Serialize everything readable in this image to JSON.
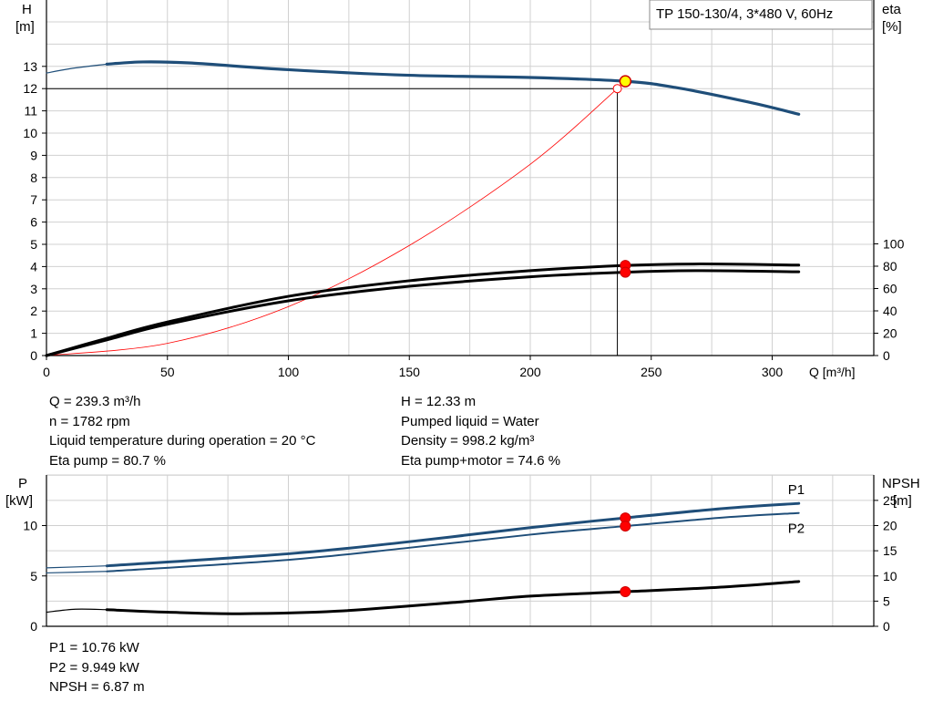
{
  "chart_data": [
    {
      "type": "line",
      "title": "TP 150-130/4, 3*480 V, 60Hz",
      "left_axis": {
        "label_top": "H",
        "label_unit": "[m]",
        "ylim": [
          0,
          14
        ],
        "ticks": [
          "0",
          "1",
          "2",
          "3",
          "4",
          "5",
          "6",
          "7",
          "8",
          "9",
          "10",
          "11",
          "12",
          "13"
        ]
      },
      "right_axis": {
        "label_top": "eta",
        "label_unit": "[%]",
        "ylim": [
          0,
          100
        ],
        "ticks": [
          "0",
          "20",
          "40",
          "60",
          "80",
          "100"
        ]
      },
      "x_axis": {
        "label": "Q [m³/h]",
        "xlim": [
          0,
          340
        ],
        "ticks": [
          "0",
          "50",
          "100",
          "150",
          "200",
          "250",
          "300"
        ]
      },
      "grid": true,
      "series": [
        {
          "role": "head",
          "axis": "left",
          "color": "#1f4e79",
          "x": [
            25,
            40,
            60,
            100,
            150,
            200,
            239.3,
            260,
            290,
            311
          ],
          "y": [
            13.1,
            13.2,
            13.15,
            12.85,
            12.6,
            12.5,
            12.33,
            12.05,
            11.4,
            10.85
          ]
        },
        {
          "role": "head-extension",
          "axis": "left",
          "color": "#1f4e79",
          "x": [
            0,
            10,
            25
          ],
          "y": [
            12.7,
            12.9,
            13.1
          ]
        },
        {
          "role": "system-curve",
          "axis": "left",
          "color": "#ff0000",
          "x": [
            0,
            50,
            100,
            150,
            200,
            236
          ],
          "y": [
            0,
            0.55,
            2.2,
            4.95,
            8.6,
            12.0
          ]
        },
        {
          "role": "eta-pump",
          "axis": "right",
          "color": "#000000",
          "x": [
            0,
            25,
            50,
            100,
            150,
            200,
            239.3,
            270,
            311
          ],
          "y": [
            0,
            15.5,
            30,
            53,
            67,
            76,
            80.7,
            82,
            81
          ]
        },
        {
          "role": "eta-pump-motor",
          "axis": "right",
          "color": "#000000",
          "x": [
            0,
            25,
            50,
            100,
            150,
            200,
            239.3,
            270,
            311
          ],
          "y": [
            0,
            14,
            28,
            49,
            62,
            70.5,
            74.6,
            76,
            75
          ]
        }
      ],
      "operating_point": {
        "Q": 239.3,
        "H": 12.33,
        "eta_pump": 80.7,
        "eta_total": 74.6
      },
      "drop_point": {
        "Q": 236,
        "H": 12.0
      }
    },
    {
      "type": "line",
      "left_axis": {
        "label_top": "P",
        "label_unit": "[kW]",
        "ylim": [
          0,
          14
        ],
        "ticks": [
          "0",
          "5",
          "10"
        ]
      },
      "right_axis": {
        "label_top": "NPSH",
        "label_unit": "[m]",
        "ylim": [
          0,
          28
        ],
        "ticks": [
          "0",
          "5",
          "10",
          "15",
          "20",
          "25"
        ]
      },
      "x_axis": {
        "xlim": [
          0,
          340
        ]
      },
      "grid": true,
      "series": [
        {
          "name": "P1",
          "axis": "left",
          "color": "#1f4e79",
          "x": [
            25,
            100,
            150,
            200,
            239.3,
            280,
            311
          ],
          "y": [
            6.0,
            7.2,
            8.4,
            9.8,
            10.76,
            11.7,
            12.2
          ]
        },
        {
          "role": "P1-extension",
          "axis": "left",
          "color": "#1f4e79",
          "x": [
            0,
            25
          ],
          "y": [
            5.8,
            6.0
          ]
        },
        {
          "name": "P2",
          "axis": "left",
          "color": "#1f4e79",
          "x": [
            25,
            100,
            150,
            200,
            239.3,
            280,
            311
          ],
          "y": [
            5.45,
            6.6,
            7.8,
            9.1,
            9.949,
            10.8,
            11.25
          ]
        },
        {
          "role": "P2-extension",
          "axis": "left",
          "color": "#1f4e79",
          "x": [
            0,
            25
          ],
          "y": [
            5.3,
            5.45
          ]
        },
        {
          "role": "npsh",
          "axis": "right",
          "color": "#000000",
          "x": [
            25,
            50,
            80,
            120,
            170,
            200,
            239.3,
            280,
            311
          ],
          "y": [
            3.3,
            2.8,
            2.5,
            3.0,
            4.8,
            6.0,
            6.87,
            7.8,
            8.9
          ]
        },
        {
          "role": "npsh-extension",
          "axis": "right",
          "color": "#000000",
          "x": [
            0,
            12,
            25
          ],
          "y": [
            2.8,
            3.4,
            3.3
          ]
        }
      ],
      "operating_point": {
        "Q": 239.3,
        "P1": 10.76,
        "P2": 9.949,
        "NPSH": 6.87
      }
    }
  ],
  "info_top_left": [
    "Q = 239.3 m³/h",
    "n = 1782 rpm",
    "Liquid temperature during operation = 20 °C",
    "Eta pump = 80.7 %"
  ],
  "info_top_right": [
    "H = 12.33 m",
    "Pumped liquid = Water",
    "Density = 998.2 kg/m³",
    "Eta pump+motor = 74.6 %"
  ],
  "info_bottom": [
    "P1 = 10.76 kW",
    "P2 = 9.949 kW",
    "NPSH = 6.87 m"
  ],
  "colors": {
    "head": "#1f4e79",
    "system": "#ff0000",
    "marker": "#ff0000",
    "op_marker": "#ffff00"
  }
}
